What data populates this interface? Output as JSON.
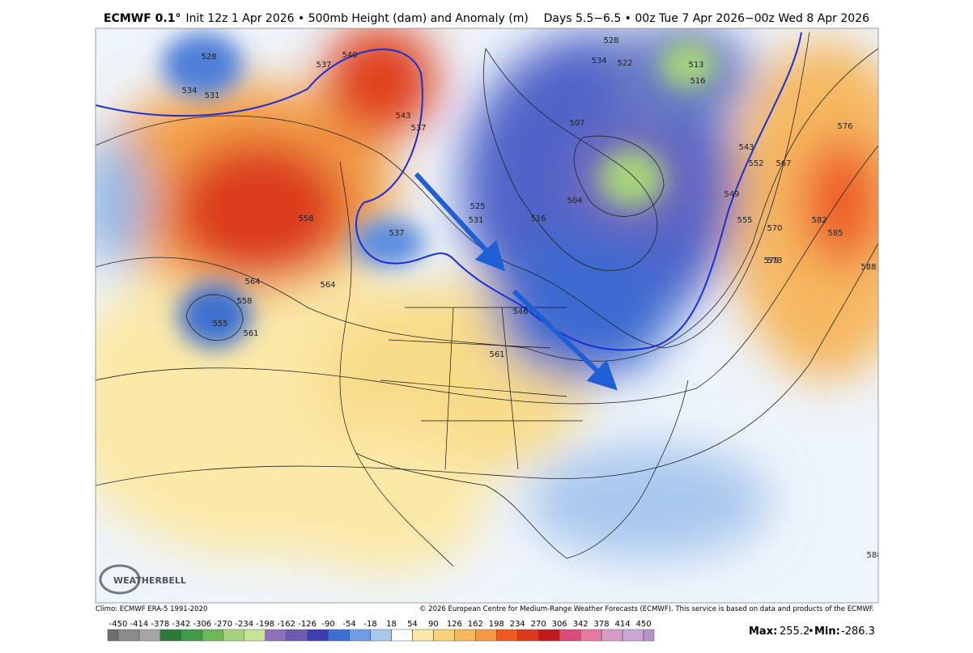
{
  "header": {
    "model": "ECMWF 0.1°",
    "description": "Init 12z 1 Apr 2026 • 500mb Height (dam) and Anomaly (m)",
    "valid": "Days 5.5−6.5 • 00z Tue 7 Apr 2026−00z Wed 8 Apr 2026"
  },
  "contour_labels": [
    "528",
    "534",
    "531",
    "537",
    "540",
    "543",
    "537",
    "558",
    "564",
    "558",
    "555",
    "561",
    "564",
    "537",
    "531",
    "528",
    "534",
    "525",
    "516",
    "507",
    "504",
    "522",
    "513",
    "516",
    "543",
    "552",
    "549",
    "555",
    "567",
    "570",
    "576",
    "582",
    "585",
    "579",
    "573",
    "588",
    "561",
    "546",
    "588"
  ],
  "logo": "WEATHERBELL",
  "footer": {
    "climo": "Climo: ECMWF ERA-5 1991-2020",
    "copyright": "© 2026 European Centre for Medium-Range Weather Forecasts (ECMWF). This service is based on data and products of the ECMWF."
  },
  "colorbar": {
    "ticks": [
      -450,
      -414,
      -378,
      -342,
      -306,
      -270,
      -234,
      -198,
      -162,
      -126,
      -90,
      -54,
      -18,
      18,
      54,
      90,
      126,
      162,
      198,
      234,
      270,
      306,
      342,
      378,
      414,
      450
    ],
    "colors": [
      "#8c8c8c",
      "#a5a5a5",
      "#2e7a3c",
      "#3f9a4a",
      "#6fb85a",
      "#a6d37c",
      "#c9e39b",
      "#8e6fb8",
      "#6b5cb0",
      "#3d3fae",
      "#3d6fd0",
      "#6f9be0",
      "#a9c8ee",
      "#ffffff",
      "#fbe9a8",
      "#f9d37a",
      "#f6b860",
      "#f29a44",
      "#ee5a22",
      "#dc3a1a",
      "#c21a1a",
      "#d94b78",
      "#e77aa0",
      "#d99ac6",
      "#c9a6d6"
    ]
  },
  "stats": {
    "max_label": "Max:",
    "max": 255.2,
    "separator": "•",
    "min_label": "Min:",
    "min": -286.3
  }
}
